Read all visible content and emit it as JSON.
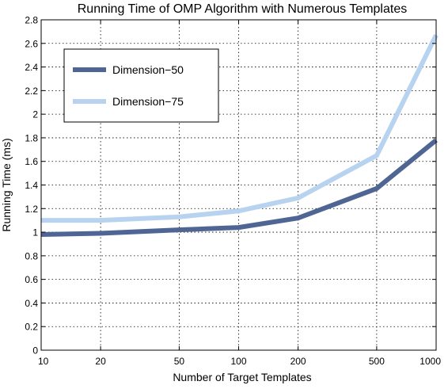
{
  "chart_data": {
    "type": "line",
    "title": "Running Time of OMP Algorithm with Numerous Templates",
    "xlabel": "Number of Target Templates",
    "ylabel": "Running Time (ms)",
    "x_scale": "log",
    "x": [
      10,
      20,
      50,
      100,
      200,
      500,
      1000
    ],
    "x_tick_labels": [
      "10",
      "20",
      "50",
      "100",
      "200",
      "500",
      "1000"
    ],
    "y_ticks": [
      0,
      0.2,
      0.4,
      0.6,
      0.8,
      1,
      1.2,
      1.4,
      1.6,
      1.8,
      2,
      2.2,
      2.4,
      2.6,
      2.8
    ],
    "y_tick_labels": [
      "0",
      "0.2",
      "0.4",
      "0.6",
      "0.8",
      "1",
      "1.2",
      "1.4",
      "1.6",
      "1.8",
      "2",
      "2.2",
      "2.4",
      "2.6",
      "2.8"
    ],
    "xlim": [
      10,
      1000
    ],
    "ylim": [
      0,
      2.8
    ],
    "grid": true,
    "legend_position": "top-left",
    "series": [
      {
        "name": "Dimension−50",
        "color": "#4f6694",
        "values": [
          0.98,
          0.99,
          1.02,
          1.04,
          1.12,
          1.37,
          1.78
        ]
      },
      {
        "name": "Dimension−75",
        "color": "#b8d3ef",
        "values": [
          1.1,
          1.1,
          1.13,
          1.18,
          1.29,
          1.65,
          2.67
        ]
      }
    ]
  }
}
